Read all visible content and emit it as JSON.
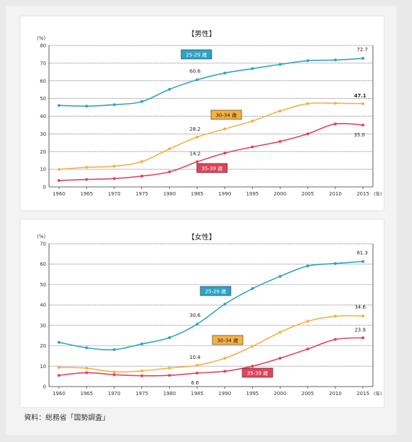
{
  "source_note": "資料：総務省「国勢調査」",
  "chart_data": [
    {
      "type": "line",
      "title": "【男性】",
      "y_unit": "(%)",
      "x_unit": "(年)",
      "ylim": [
        0,
        80
      ],
      "yticks": [
        0,
        10,
        20,
        30,
        40,
        50,
        60,
        70,
        80
      ],
      "grid": true,
      "categories": [
        "1960",
        "1965",
        "1970",
        "1975",
        "1980",
        "1985",
        "1990",
        "1995",
        "2000",
        "2005",
        "2010",
        "2015"
      ],
      "series": [
        {
          "name": "25-29 歳",
          "color": "#2ea3c4",
          "values": [
            46.1,
            45.7,
            46.5,
            48.3,
            55.2,
            60.6,
            64.4,
            66.9,
            69.3,
            71.4,
            71.8,
            72.7
          ]
        },
        {
          "name": "30-34 歳",
          "color": "#f5b042",
          "values": [
            9.9,
            11.1,
            11.7,
            14.3,
            21.5,
            28.2,
            32.8,
            37.3,
            42.9,
            47.1,
            47.3,
            47.1
          ]
        },
        {
          "name": "35-39 歳",
          "color": "#e0445a",
          "values": [
            3.6,
            4.2,
            4.7,
            6.1,
            8.5,
            14.2,
            19.1,
            22.6,
            25.7,
            30.0,
            35.6,
            35.0
          ]
        }
      ],
      "annotations": [
        {
          "series": 0,
          "index": 5,
          "text": "60.6"
        },
        {
          "series": 0,
          "index": 11,
          "text": "72.7"
        },
        {
          "series": 1,
          "index": 5,
          "text": "28.2"
        },
        {
          "series": 1,
          "index": 11,
          "text": "47.1"
        },
        {
          "series": 2,
          "index": 5,
          "text": "14.2"
        },
        {
          "series": 2,
          "index": 11,
          "text": "35.0"
        }
      ]
    },
    {
      "type": "line",
      "title": "【女性】",
      "y_unit": "(%)",
      "x_unit": "(年)",
      "ylim": [
        0,
        70
      ],
      "yticks": [
        0,
        10,
        20,
        30,
        40,
        50,
        60,
        70
      ],
      "grid": true,
      "categories": [
        "1960",
        "1965",
        "1970",
        "1975",
        "1980",
        "1985",
        "1990",
        "1995",
        "2000",
        "2005",
        "2010",
        "2015"
      ],
      "series": [
        {
          "name": "25-29 歳",
          "color": "#2ea3c4",
          "values": [
            21.7,
            19.0,
            18.1,
            20.9,
            24.0,
            30.6,
            40.4,
            48.0,
            54.0,
            59.1,
            60.3,
            61.3
          ]
        },
        {
          "name": "30-34 歳",
          "color": "#f5b042",
          "values": [
            9.4,
            9.0,
            7.2,
            7.7,
            9.1,
            10.4,
            13.9,
            19.7,
            26.6,
            32.0,
            34.5,
            34.6
          ]
        },
        {
          "name": "35-39 歳",
          "color": "#e0445a",
          "values": [
            5.5,
            6.8,
            5.8,
            5.3,
            5.5,
            6.6,
            7.5,
            10.0,
            13.9,
            18.4,
            23.1,
            23.9
          ]
        }
      ],
      "annotations": [
        {
          "series": 0,
          "index": 5,
          "text": "30.6"
        },
        {
          "series": 0,
          "index": 11,
          "text": "61.3"
        },
        {
          "series": 1,
          "index": 5,
          "text": "10.4"
        },
        {
          "series": 1,
          "index": 11,
          "text": "34.6"
        },
        {
          "series": 2,
          "index": 5,
          "text": "6.6"
        },
        {
          "series": 2,
          "index": 11,
          "text": "23.9"
        }
      ]
    }
  ]
}
